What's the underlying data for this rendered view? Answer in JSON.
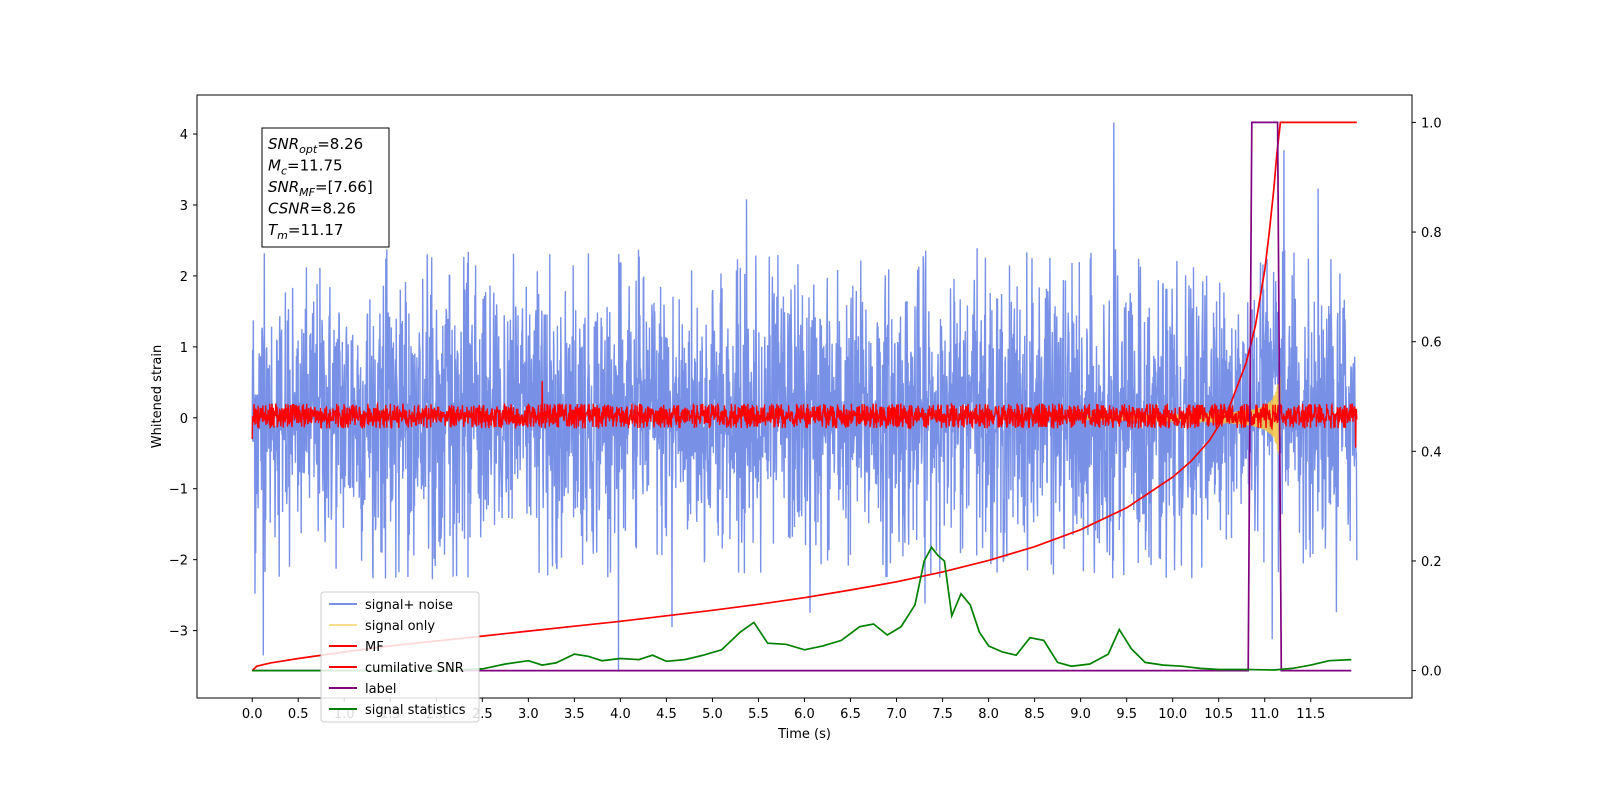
{
  "chart_data": {
    "type": "line",
    "title": "",
    "xlabel": "Time (s)",
    "ylabel": "Whitened strain",
    "y2label": "",
    "xlim": [
      -0.6,
      12.6
    ],
    "ylim": [
      -3.95,
      4.55
    ],
    "y2lim": [
      -0.05,
      1.05
    ],
    "xticks": [
      0.0,
      0.5,
      1.0,
      1.5,
      2.0,
      2.5,
      3.0,
      3.5,
      4.0,
      4.5,
      5.0,
      5.5,
      6.0,
      6.5,
      7.0,
      7.5,
      8.0,
      8.5,
      9.0,
      9.5,
      10.0,
      10.5,
      11.0,
      11.5
    ],
    "xtick_labels": [
      "0.0",
      "0.5",
      "1.0",
      "1.5",
      "2.0",
      "2.5",
      "3.0",
      "3.5",
      "4.0",
      "4.5",
      "5.0",
      "5.5",
      "6.0",
      "6.5",
      "7.0",
      "7.5",
      "8.0",
      "8.5",
      "9.0",
      "9.5",
      "10.0",
      "10.5",
      "11.0",
      "11.5"
    ],
    "yticks": [
      -3,
      -2,
      -1,
      0,
      1,
      2,
      3,
      4
    ],
    "ytick_labels": [
      "−3",
      "−2",
      "−1",
      "0",
      "1",
      "2",
      "3",
      "4"
    ],
    "y2ticks": [
      0.0,
      0.2,
      0.4,
      0.6,
      0.8,
      1.0
    ],
    "y2tick_labels": [
      "0.0",
      "0.2",
      "0.4",
      "0.6",
      "0.8",
      "1.0"
    ],
    "grid": false,
    "legend_position": "lower-left",
    "annotation": {
      "lines": [
        {
          "base": "SNR",
          "sub": "opt",
          "value": "=8.26"
        },
        {
          "base": "M",
          "sub": "c",
          "value": "=11.75"
        },
        {
          "base": "SNR",
          "sub": "MF",
          "value": "=[7.66]"
        },
        {
          "base": "CSNR",
          "sub": "",
          "value": "=8.26"
        },
        {
          "base": "T",
          "sub": "m",
          "value": "=11.17"
        }
      ]
    },
    "series": [
      {
        "name": "signal+ noise",
        "axis": "left",
        "color": "#7891e6",
        "kind": "noise",
        "x_range": [
          0.0,
          12.0
        ],
        "approx_band": [
          -2.3,
          2.4
        ],
        "spikes": [
          [
            0.03,
            -2.48
          ],
          [
            0.12,
            -3.35
          ],
          [
            0.13,
            2.32
          ],
          [
            3.98,
            -3.58
          ],
          [
            4.56,
            -2.95
          ],
          [
            5.37,
            3.08
          ],
          [
            6.06,
            -2.75
          ],
          [
            7.31,
            -2.62
          ],
          [
            9.36,
            4.16
          ],
          [
            11.08,
            -3.12
          ],
          [
            11.21,
            3.77
          ],
          [
            11.58,
            3.23
          ],
          [
            11.78,
            -2.74
          ]
        ]
      },
      {
        "name": "signal only",
        "axis": "left",
        "color": "#f5c542",
        "kind": "chirp",
        "x_range": [
          9.0,
          11.17
        ],
        "max_amplitude": 0.6
      },
      {
        "name": "MF",
        "axis": "left",
        "color": "#ff0000",
        "kind": "noise",
        "x_range": [
          0.0,
          12.0
        ],
        "approx_band": [
          -0.15,
          0.2
        ],
        "spikes": [
          [
            0.0,
            1.0
          ],
          [
            0.0,
            -0.3
          ],
          [
            3.15,
            0.52
          ],
          [
            11.99,
            0.92
          ],
          [
            11.99,
            -0.42
          ]
        ]
      },
      {
        "name": "cumilative SNR",
        "axis": "right",
        "color": "#ff0000",
        "x": [
          0.0,
          0.05,
          0.2,
          0.5,
          1.0,
          1.5,
          2.0,
          2.5,
          3.0,
          3.5,
          4.0,
          4.5,
          5.0,
          5.5,
          6.0,
          6.5,
          7.0,
          7.5,
          8.0,
          8.5,
          9.0,
          9.5,
          10.0,
          10.2,
          10.4,
          10.6,
          10.8,
          10.9,
          11.0,
          11.05,
          11.1,
          11.13,
          11.17,
          11.2,
          12.0
        ],
        "values": [
          0.0,
          0.008,
          0.014,
          0.022,
          0.034,
          0.045,
          0.054,
          0.063,
          0.072,
          0.081,
          0.09,
          0.1,
          0.11,
          0.121,
          0.133,
          0.147,
          0.162,
          0.18,
          0.201,
          0.226,
          0.257,
          0.297,
          0.353,
          0.382,
          0.42,
          0.474,
          0.562,
          0.63,
          0.73,
          0.8,
          0.88,
          0.94,
          1.0,
          1.0,
          1.0
        ]
      },
      {
        "name": "label",
        "axis": "right",
        "color": "#800080",
        "x": [
          0.0,
          10.82,
          10.86,
          11.14,
          11.18,
          11.94
        ],
        "values": [
          0.0,
          0.0,
          1.0,
          1.0,
          0.0,
          0.0
        ]
      },
      {
        "name": "signal statistics",
        "axis": "right",
        "color": "#008000",
        "x": [
          0.0,
          0.5,
          1.0,
          1.5,
          2.0,
          2.5,
          2.75,
          3.0,
          3.15,
          3.3,
          3.5,
          3.65,
          3.8,
          4.0,
          4.2,
          4.35,
          4.5,
          4.7,
          4.9,
          5.1,
          5.3,
          5.45,
          5.6,
          5.8,
          6.0,
          6.2,
          6.4,
          6.6,
          6.75,
          6.9,
          7.05,
          7.2,
          7.3,
          7.38,
          7.45,
          7.52,
          7.6,
          7.7,
          7.8,
          7.9,
          8.0,
          8.15,
          8.3,
          8.45,
          8.6,
          8.75,
          8.9,
          9.1,
          9.3,
          9.42,
          9.55,
          9.7,
          9.9,
          10.1,
          10.3,
          10.5,
          10.8,
          11.1,
          11.3,
          11.5,
          11.7,
          11.94
        ],
        "values": [
          0.0,
          0.0,
          0.0,
          0.0,
          0.0,
          0.003,
          0.012,
          0.018,
          0.01,
          0.014,
          0.03,
          0.026,
          0.018,
          0.022,
          0.02,
          0.028,
          0.017,
          0.02,
          0.028,
          0.038,
          0.07,
          0.088,
          0.05,
          0.048,
          0.038,
          0.045,
          0.055,
          0.08,
          0.085,
          0.065,
          0.08,
          0.12,
          0.2,
          0.225,
          0.21,
          0.2,
          0.1,
          0.14,
          0.12,
          0.07,
          0.045,
          0.034,
          0.028,
          0.06,
          0.055,
          0.015,
          0.008,
          0.012,
          0.03,
          0.075,
          0.04,
          0.015,
          0.01,
          0.008,
          0.004,
          0.002,
          0.002,
          0.001,
          0.004,
          0.01,
          0.018,
          0.02
        ]
      }
    ]
  }
}
